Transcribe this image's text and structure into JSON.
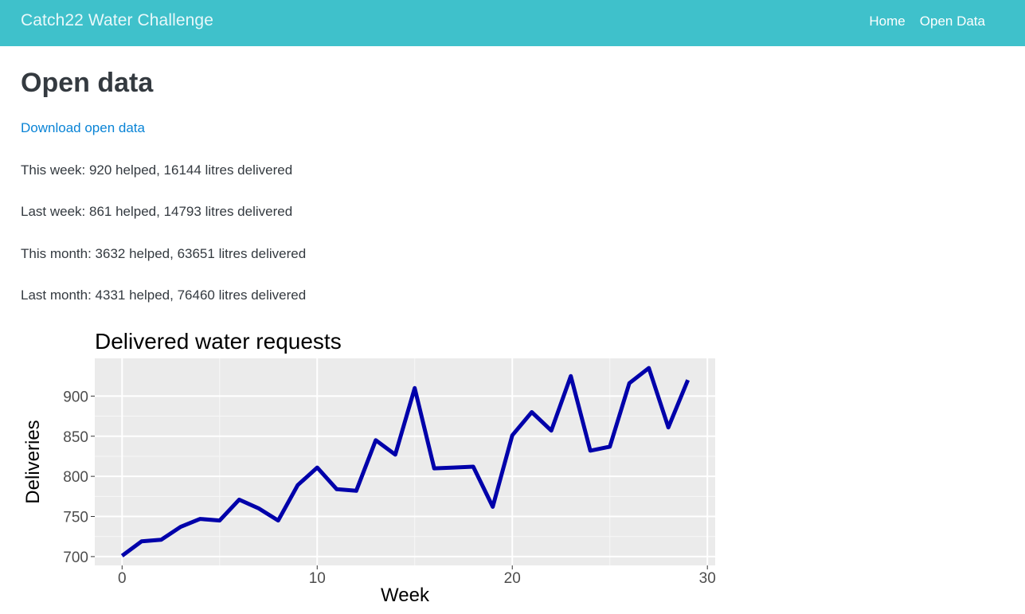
{
  "navbar": {
    "brand": "Catch22 Water Challenge",
    "links": [
      {
        "label": "Home"
      },
      {
        "label": "Open Data"
      }
    ]
  },
  "page": {
    "title": "Open data",
    "download_label": "Download open data",
    "stats": [
      "This week: 920 helped, 16144 litres delivered",
      "Last week: 861 helped, 14793 litres delivered",
      "This month: 3632 helped, 63651 litres delivered",
      "Last month: 4331 helped, 76460 litres delivered"
    ]
  },
  "colors": {
    "navbar_bg": "#3fc1cb",
    "line": "#0000aa",
    "panel_bg": "#ebebeb",
    "link": "#0a84d6"
  },
  "chart_data": {
    "type": "line",
    "title": "Delivered water requests",
    "xlabel": "Week",
    "ylabel": "Deliveries",
    "xlim": [
      -1.4,
      30.4
    ],
    "ylim": [
      689,
      947
    ],
    "xticks": [
      0,
      10,
      20,
      30
    ],
    "yticks": [
      700,
      750,
      800,
      850,
      900
    ],
    "grid": true,
    "series": [
      {
        "x": [
          0,
          1,
          2,
          3,
          4,
          5,
          6,
          7,
          8,
          9,
          10,
          11,
          12,
          13,
          14,
          15,
          16,
          17,
          18,
          19,
          20,
          21,
          22,
          23,
          24,
          25,
          26,
          27,
          28,
          29
        ],
        "values": [
          701,
          719,
          721,
          737,
          747,
          745,
          771,
          760,
          745,
          789,
          811,
          784,
          782,
          845,
          827,
          910,
          810,
          811,
          812,
          762,
          851,
          880,
          857,
          925,
          832,
          837,
          916,
          935,
          861,
          920
        ]
      }
    ]
  }
}
